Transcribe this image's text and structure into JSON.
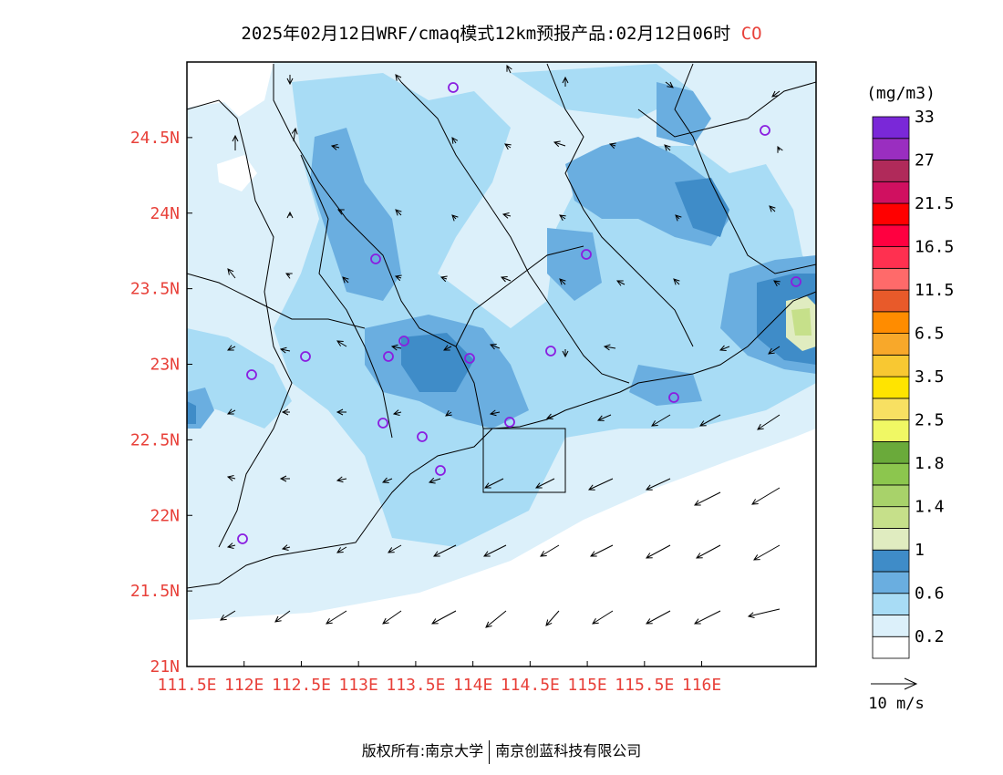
{
  "title": {
    "main": "2025年02月12日WRF/cmaq模式12km预报产品:02月12日06时",
    "species": "CO"
  },
  "map": {
    "lat_ticks": [
      "21N",
      "21.5N",
      "22N",
      "22.5N",
      "23N",
      "23.5N",
      "24N",
      "24.5N"
    ],
    "lon_ticks": [
      "111.5E",
      "112E",
      "112.5E",
      "113E",
      "113.5E",
      "114E",
      "114.5E",
      "115E",
      "115.5E",
      "116E"
    ],
    "lon_range": [
      111.5,
      117.0
    ],
    "lat_range": [
      21.0,
      25.0
    ],
    "axis_label_color": "#e8413a"
  },
  "colorbar": {
    "unit": "(mg/m3)",
    "colors": [
      "#ffffff",
      "#dcf0fa",
      "#a8dcf5",
      "#6aaee0",
      "#3f8cc8",
      "#e0ecc0",
      "#c6e08a",
      "#a8d26a",
      "#8cc64e",
      "#6aaa3a",
      "#f0f864",
      "#f8e062",
      "#ffe400",
      "#f8c832",
      "#f8a82a",
      "#ff8c00",
      "#e85a2a",
      "#ff6a6a",
      "#ff3050",
      "#ff0040",
      "#ff0000",
      "#d01060",
      "#b02a5a",
      "#9a2ec0",
      "#7a28d8"
    ],
    "labels": [
      "0.2",
      "0.6",
      "1",
      "1.4",
      "1.8",
      "2.5",
      "3.5",
      "6.5",
      "11.5",
      "16.5",
      "21.5",
      "27",
      "33"
    ]
  },
  "wind_legend": {
    "label": "10 m/s"
  },
  "stations_color": "#8a1ee0",
  "footer": {
    "left": "版权所有:南京大学",
    "right": "南京创蓝科技有限公司"
  }
}
